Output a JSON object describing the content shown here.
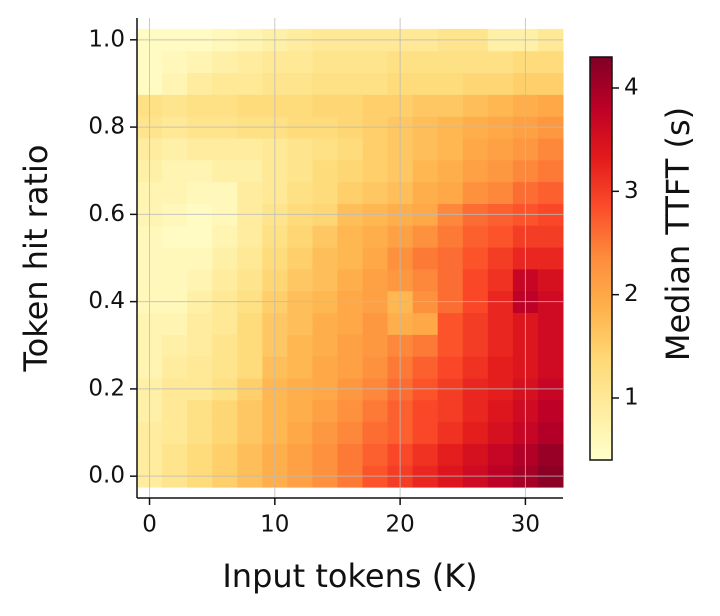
{
  "chart_data": {
    "type": "heatmap",
    "x_label": "Input tokens (K)",
    "y_label": "Token hit ratio",
    "colorbar_label": "Median TTFT (s)",
    "x": [
      0,
      2,
      4,
      6,
      8,
      10,
      12,
      14,
      16,
      18,
      20,
      22,
      24,
      26,
      28,
      30,
      32
    ],
    "y": [
      0,
      0.05,
      0.1,
      0.15,
      0.2,
      0.25,
      0.3,
      0.35,
      0.4,
      0.45,
      0.5,
      0.55,
      0.6,
      0.65,
      0.7,
      0.75,
      0.8,
      0.85,
      0.9,
      0.95,
      1.0
    ],
    "values": [
      [
        0.9,
        1.1,
        1.3,
        1.5,
        1.7,
        1.9,
        2.1,
        2.3,
        2.5,
        2.8,
        3.0,
        3.2,
        3.4,
        3.6,
        3.8,
        4.0,
        4.2
      ],
      [
        0.9,
        1.1,
        1.3,
        1.5,
        1.7,
        1.9,
        2.1,
        2.3,
        2.5,
        2.7,
        2.9,
        3.1,
        3.3,
        3.5,
        3.7,
        3.9,
        4.1
      ],
      [
        0.9,
        1.0,
        1.2,
        1.4,
        1.6,
        1.8,
        2.0,
        2.2,
        2.4,
        2.6,
        2.7,
        2.9,
        3.1,
        3.3,
        3.5,
        3.7,
        3.9
      ],
      [
        0.8,
        1.0,
        1.2,
        1.4,
        1.6,
        1.8,
        1.9,
        2.1,
        2.3,
        2.5,
        2.7,
        2.9,
        3.0,
        3.2,
        3.4,
        3.6,
        3.8
      ],
      [
        0.8,
        1.0,
        1.0,
        1.2,
        1.5,
        1.8,
        1.9,
        2.0,
        2.2,
        2.4,
        2.6,
        2.8,
        3.0,
        3.2,
        3.3,
        3.5,
        3.7
      ],
      [
        0.7,
        0.9,
        1.0,
        1.1,
        1.3,
        1.7,
        1.8,
        2.0,
        2.1,
        2.3,
        2.5,
        2.7,
        2.9,
        3.1,
        3.3,
        3.4,
        3.6
      ],
      [
        0.7,
        0.8,
        0.9,
        1.1,
        1.3,
        1.6,
        1.8,
        1.9,
        2.1,
        2.2,
        2.4,
        2.5,
        2.8,
        3.0,
        3.2,
        3.4,
        3.6
      ],
      [
        0.7,
        0.7,
        0.9,
        1.0,
        1.3,
        1.6,
        1.7,
        1.9,
        2.0,
        2.2,
        1.9,
        2.0,
        2.8,
        3.0,
        3.2,
        3.4,
        3.6
      ],
      [
        0.6,
        0.6,
        0.8,
        1.0,
        1.2,
        1.5,
        1.7,
        1.8,
        2.0,
        2.1,
        1.8,
        2.3,
        2.6,
        2.9,
        3.2,
        3.8,
        3.6
      ],
      [
        0.6,
        0.6,
        0.7,
        0.9,
        1.1,
        1.4,
        1.6,
        1.7,
        1.9,
        2.1,
        2.2,
        2.4,
        2.6,
        2.9,
        3.1,
        3.7,
        3.5
      ],
      [
        0.6,
        0.6,
        0.6,
        0.8,
        1.0,
        1.3,
        1.5,
        1.7,
        1.8,
        2.0,
        2.3,
        2.5,
        2.6,
        2.8,
        3.0,
        3.2,
        3.2
      ],
      [
        0.6,
        0.5,
        0.5,
        0.7,
        0.9,
        1.2,
        1.4,
        1.6,
        1.8,
        1.9,
        2.1,
        2.3,
        2.5,
        2.7,
        2.8,
        3.0,
        3.0
      ],
      [
        0.7,
        0.6,
        0.5,
        0.6,
        0.9,
        1.1,
        1.3,
        1.4,
        1.7,
        1.8,
        1.9,
        2.0,
        2.4,
        2.6,
        2.7,
        2.8,
        2.9
      ],
      [
        0.7,
        0.7,
        0.6,
        0.6,
        0.9,
        1.0,
        1.2,
        1.3,
        1.5,
        1.6,
        1.7,
        1.9,
        2.0,
        2.3,
        2.4,
        2.6,
        2.7
      ],
      [
        0.8,
        0.7,
        0.7,
        0.8,
        0.8,
        1.0,
        1.1,
        1.3,
        1.4,
        1.5,
        1.6,
        1.8,
        1.9,
        2.1,
        2.2,
        2.4,
        2.5
      ],
      [
        0.9,
        0.8,
        0.9,
        0.9,
        0.9,
        1.0,
        1.1,
        1.2,
        1.3,
        1.5,
        1.6,
        1.7,
        1.8,
        2.0,
        2.1,
        2.2,
        2.4
      ],
      [
        1.1,
        1.0,
        1.1,
        1.1,
        1.2,
        1.2,
        1.3,
        1.3,
        1.4,
        1.5,
        1.6,
        1.7,
        1.8,
        1.9,
        2.0,
        2.1,
        2.2
      ],
      [
        1.2,
        1.1,
        1.2,
        1.2,
        1.3,
        1.3,
        1.3,
        1.4,
        1.4,
        1.5,
        1.5,
        1.6,
        1.6,
        1.7,
        1.8,
        1.9,
        2.0
      ],
      [
        0.5,
        0.7,
        0.9,
        1.0,
        1.0,
        1.1,
        1.1,
        1.2,
        1.2,
        1.2,
        1.3,
        1.3,
        1.3,
        1.4,
        1.4,
        1.5,
        1.5
      ],
      [
        0.5,
        0.6,
        0.7,
        0.8,
        0.9,
        1.0,
        1.0,
        1.1,
        1.1,
        1.1,
        1.2,
        1.2,
        1.2,
        1.2,
        1.2,
        1.3,
        1.3
      ],
      [
        0.5,
        0.5,
        0.5,
        0.6,
        0.7,
        0.8,
        0.9,
        1.0,
        1.0,
        1.0,
        1.0,
        1.0,
        1.1,
        1.1,
        0.8,
        0.8,
        1.0
      ]
    ],
    "xlim": [
      -1,
      33
    ],
    "ylim": [
      -0.05,
      1.05
    ],
    "xticks": [
      0,
      10,
      20,
      30
    ],
    "yticks": [
      {
        "value": 0,
        "label": "0.0"
      },
      {
        "value": 0.2,
        "label": "0.2"
      },
      {
        "value": 0.4,
        "label": "0.4"
      },
      {
        "value": 0.6,
        "label": "0.6"
      },
      {
        "value": 0.8,
        "label": "0.8"
      },
      {
        "value": 1.0,
        "label": "1.0"
      }
    ],
    "clim": [
      0.4,
      4.3
    ],
    "cticks": [
      1,
      2,
      3,
      4
    ],
    "colormap": [
      "#ffffcc",
      "#ffeda0",
      "#fed976",
      "#feb24c",
      "#fd8d3c",
      "#fc4e2a",
      "#e31a1c",
      "#bd0026",
      "#800026"
    ],
    "grid": true
  }
}
